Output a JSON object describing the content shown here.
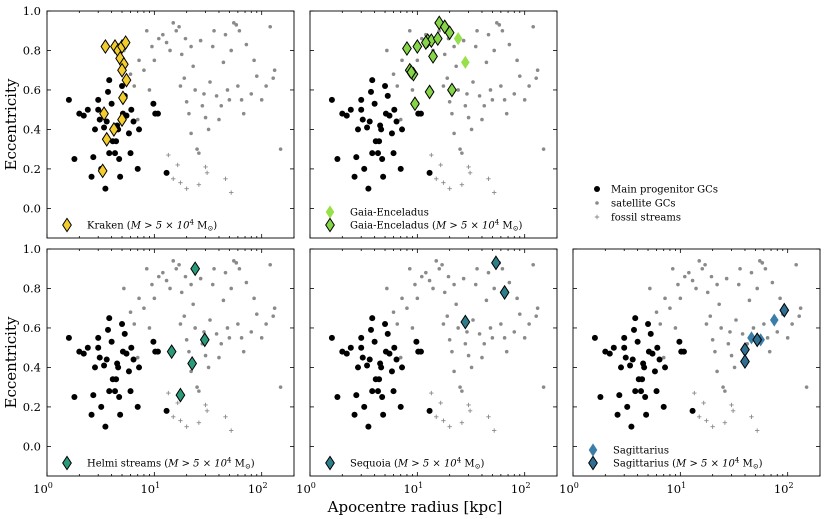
{
  "figure": {
    "xlabel": "Apocentre radius [kpc]",
    "ylabel": "Eccentricity",
    "xscale": "log",
    "xlim": [
      1,
      200
    ],
    "ylim": [
      -0.15,
      1.0
    ],
    "xticks": [
      {
        "value": 1,
        "label": "10",
        "exp": "0"
      },
      {
        "value": 10,
        "label": "10",
        "exp": "1"
      },
      {
        "value": 100,
        "label": "10",
        "exp": "2"
      }
    ],
    "yticks": [
      "0.0",
      "0.2",
      "0.4",
      "0.6",
      "0.8",
      "1.0"
    ],
    "shared_legend": {
      "main_label": "Main progenitor GCs",
      "satellite_label": "satellite GCs",
      "stream_label": "fossil streams"
    }
  },
  "chart_data": {
    "type": "scatter",
    "colors": {
      "main": "#000000",
      "satellite": "#8a8a8a",
      "stream": "#8a8a8a",
      "kraken": "#f2cd2c",
      "gaia_enceladus": "#86d548",
      "gaia_enceladus_light": "#98e04a",
      "helmi": "#2a9b7a",
      "sequoia": "#2c7e8a",
      "sagittarius": "#2f6f92",
      "sagittarius_light": "#3b7fa8"
    },
    "background_series": {
      "main_progenitor": [
        [
          1.6,
          0.55
        ],
        [
          1.8,
          0.25
        ],
        [
          2.0,
          0.48
        ],
        [
          2.2,
          0.47
        ],
        [
          2.4,
          0.5
        ],
        [
          2.6,
          0.16
        ],
        [
          2.7,
          0.26
        ],
        [
          2.8,
          0.4
        ],
        [
          3.0,
          0.55
        ],
        [
          3.0,
          0.5
        ],
        [
          3.1,
          0.45
        ],
        [
          3.2,
          0.2
        ],
        [
          3.4,
          0.41
        ],
        [
          3.5,
          0.1
        ],
        [
          3.6,
          0.44
        ],
        [
          3.7,
          0.59
        ],
        [
          3.8,
          0.65
        ],
        [
          3.8,
          0.28
        ],
        [
          4.0,
          0.53
        ],
        [
          4.1,
          0.34
        ],
        [
          4.3,
          0.28
        ],
        [
          4.4,
          0.34
        ],
        [
          4.5,
          0.42
        ],
        [
          4.6,
          0.4
        ],
        [
          4.7,
          0.25
        ],
        [
          4.8,
          0.16
        ],
        [
          5.0,
          0.62
        ],
        [
          5.1,
          0.48
        ],
        [
          5.3,
          0.57
        ],
        [
          5.5,
          0.47
        ],
        [
          5.8,
          0.38
        ],
        [
          6.0,
          0.28
        ],
        [
          6.1,
          0.5
        ],
        [
          6.4,
          0.44
        ],
        [
          7.0,
          0.2
        ],
        [
          7.2,
          0.4
        ],
        [
          9.8,
          0.53
        ],
        [
          10.2,
          0.48
        ],
        [
          10.8,
          0.48
        ],
        [
          13.0,
          0.18
        ]
      ],
      "satellite": [
        [
          5.2,
          0.8
        ],
        [
          6.0,
          0.68
        ],
        [
          6.5,
          0.62
        ],
        [
          7.0,
          0.45
        ],
        [
          7.2,
          0.75
        ],
        [
          8.0,
          0.7
        ],
        [
          8.5,
          0.9
        ],
        [
          9.0,
          0.6
        ],
        [
          9.5,
          0.82
        ],
        [
          10.0,
          0.75
        ],
        [
          11.0,
          0.86
        ],
        [
          12.0,
          0.88
        ],
        [
          13.0,
          0.84
        ],
        [
          14.0,
          0.8
        ],
        [
          15.0,
          0.94
        ],
        [
          16.0,
          0.9
        ],
        [
          17.0,
          0.92
        ],
        [
          17.5,
          0.62
        ],
        [
          18.0,
          0.78
        ],
        [
          19.0,
          0.66
        ],
        [
          19.5,
          0.86
        ],
        [
          20.0,
          0.54
        ],
        [
          21.0,
          0.48
        ],
        [
          22.0,
          0.82
        ],
        [
          22.0,
          0.38
        ],
        [
          23.0,
          0.72
        ],
        [
          24.0,
          0.6
        ],
        [
          25.0,
          0.3
        ],
        [
          26.0,
          0.28
        ],
        [
          27.0,
          0.85
        ],
        [
          28.0,
          0.52
        ],
        [
          29.0,
          0.58
        ],
        [
          30.0,
          0.46
        ],
        [
          32.0,
          0.4
        ],
        [
          33.0,
          0.64
        ],
        [
          35.0,
          0.82
        ],
        [
          36.0,
          0.9
        ],
        [
          38.0,
          0.57
        ],
        [
          40.0,
          0.45
        ],
        [
          42.0,
          0.52
        ],
        [
          44.0,
          0.74
        ],
        [
          46.0,
          0.88
        ],
        [
          48.0,
          0.6
        ],
        [
          50.0,
          0.55
        ],
        [
          52.0,
          0.8
        ],
        [
          55.0,
          0.94
        ],
        [
          58.0,
          0.93
        ],
        [
          60.0,
          0.62
        ],
        [
          62.0,
          0.9
        ],
        [
          65.0,
          0.55
        ],
        [
          68.0,
          0.48
        ],
        [
          72.0,
          0.83
        ],
        [
          80.0,
          0.58
        ],
        [
          85.0,
          0.75
        ],
        [
          90.0,
          0.67
        ],
        [
          100.0,
          0.55
        ],
        [
          110.0,
          0.62
        ],
        [
          120.0,
          0.92
        ],
        [
          128.0,
          0.66
        ],
        [
          132.0,
          0.7
        ],
        [
          150.0,
          0.3
        ]
      ],
      "streams": [
        [
          13.5,
          0.27
        ],
        [
          15.0,
          0.15
        ],
        [
          16.5,
          0.22
        ],
        [
          17.5,
          0.13
        ],
        [
          20.0,
          0.1
        ],
        [
          26.0,
          0.12
        ],
        [
          30.0,
          0.21
        ],
        [
          31.0,
          0.18
        ],
        [
          46.0,
          0.15
        ],
        [
          52.0,
          0.08
        ]
      ]
    },
    "panels": [
      {
        "name": "kraken",
        "series": [
          {
            "name": "Kraken (M > 5 × 10^4 M☉)",
            "color": "#f2cd2c",
            "points": [
              [
                3.5,
                0.82
              ],
              [
                4.3,
                0.82
              ],
              [
                4.6,
                0.8
              ],
              [
                5.0,
                0.82
              ],
              [
                5.4,
                0.84
              ],
              [
                4.8,
                0.76
              ],
              [
                5.2,
                0.73
              ],
              [
                5.0,
                0.7
              ],
              [
                5.5,
                0.65
              ],
              [
                5.1,
                0.56
              ],
              [
                3.4,
                0.48
              ],
              [
                5.0,
                0.45
              ],
              [
                4.2,
                0.4
              ],
              [
                3.6,
                0.35
              ],
              [
                3.3,
                0.19
              ]
            ]
          }
        ]
      },
      {
        "name": "gaia-enceladus",
        "series": [
          {
            "name": "Gaia-Enceladus",
            "color": "#98e04a",
            "outline": false,
            "points": [
              [
                24.0,
                0.86
              ],
              [
                28.0,
                0.74
              ]
            ]
          },
          {
            "name": "Gaia-Enceladus (M > 5 × 10^4 M☉)",
            "color": "#86d548",
            "points": [
              [
                8.0,
                0.81
              ],
              [
                10.0,
                0.82
              ],
              [
                12.5,
                0.85
              ],
              [
                13.5,
                0.85
              ],
              [
                12.0,
                0.84
              ],
              [
                15.5,
                0.86
              ],
              [
                16.0,
                0.94
              ],
              [
                18.0,
                0.92
              ],
              [
                20.0,
                0.89
              ],
              [
                14.0,
                0.77
              ],
              [
                8.5,
                0.7
              ],
              [
                9.2,
                0.68
              ],
              [
                8.8,
                0.69
              ],
              [
                13.0,
                0.59
              ],
              [
                21.0,
                0.6
              ],
              [
                9.5,
                0.53
              ]
            ]
          }
        ]
      },
      {
        "name": "legend-panel",
        "legend_only": true
      },
      {
        "name": "helmi",
        "series": [
          {
            "name": "Helmi streams (M > 5 × 10^4 M☉)",
            "color": "#2a9b7a",
            "points": [
              [
                24.0,
                0.9
              ],
              [
                29.5,
                0.54
              ],
              [
                22.5,
                0.42
              ],
              [
                14.5,
                0.48
              ],
              [
                17.5,
                0.26
              ]
            ]
          }
        ]
      },
      {
        "name": "sequoia",
        "series": [
          {
            "name": "Sequoia (M > 5 × 10^4 M☉)",
            "color": "#2c7e8a",
            "points": [
              [
                54.0,
                0.93
              ],
              [
                65.0,
                0.78
              ],
              [
                28.0,
                0.63
              ]
            ]
          }
        ]
      },
      {
        "name": "sagittarius",
        "series": [
          {
            "name": "Sagittarius",
            "color": "#3b7fa8",
            "outline": false,
            "points": [
              [
                46.0,
                0.55
              ],
              [
                56.0,
                0.54
              ],
              [
                75.0,
                0.64
              ]
            ]
          },
          {
            "name": "Sagittarius (M > 5 × 10^4 M☉)",
            "color": "#2f6f92",
            "points": [
              [
                40.0,
                0.49
              ],
              [
                40.0,
                0.43
              ],
              [
                52.0,
                0.54
              ],
              [
                93.0,
                0.69
              ]
            ]
          }
        ]
      }
    ]
  },
  "legends": {
    "kraken": {
      "prefix": "Kraken",
      "mass": "M > 5 × 10",
      "exp": "4",
      "unit": "M",
      "sun": "⊙"
    },
    "gaia_light": {
      "label": "Gaia-Enceladus"
    },
    "gaia": {
      "prefix": "Gaia-Enceladus",
      "mass": "M > 5 × 10",
      "exp": "4",
      "unit": "M",
      "sun": "⊙"
    },
    "helmi": {
      "prefix": "Helmi streams",
      "mass": "M > 5 × 10",
      "exp": "4",
      "unit": "M",
      "sun": "⊙"
    },
    "sequoia": {
      "prefix": "Sequoia",
      "mass": "M > 5 × 10",
      "exp": "4",
      "unit": "M",
      "sun": "⊙"
    },
    "sag_light": {
      "label": "Sagittarius"
    },
    "sag": {
      "prefix": "Sagittarius",
      "mass": "M > 5 × 10",
      "exp": "4",
      "unit": "M",
      "sun": "⊙"
    }
  }
}
